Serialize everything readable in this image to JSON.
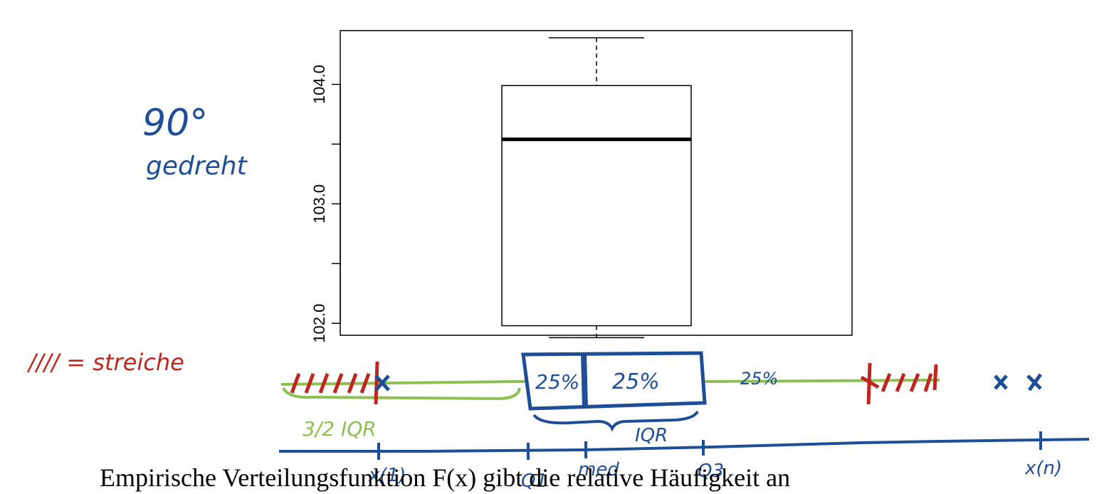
{
  "chart_data": {
    "type": "boxplot",
    "orientation": "vertical",
    "ylim": [
      101.9,
      104.45
    ],
    "yticks": [
      102.0,
      102.5,
      103.0,
      103.5,
      104.0
    ],
    "ytick_labels": [
      "102.0",
      "",
      "103.0",
      "",
      "104.0"
    ],
    "whisker_low": 101.88,
    "q1": 101.98,
    "median": 103.54,
    "q3": 103.99,
    "whisker_high": 104.39,
    "grid": false
  },
  "annotations": {
    "rotation_note_line1": "90°",
    "rotation_note_line2": "gedreht",
    "strike_legend": "//// = streiche",
    "box_left_pct": "25%",
    "box_right_pct": "25%",
    "right_segment_pct": "25%",
    "fence_label": "3/2 IQR",
    "iqr_label": "IQR",
    "axis_label_min": "x(1)",
    "axis_label_q1": "Q1",
    "axis_label_med": "med",
    "axis_label_q3": "Q3",
    "axis_label_max": "x(n)",
    "outlier_marks": [
      "x",
      "x"
    ]
  },
  "colors": {
    "blue": "#1f4e99",
    "green": "#8cc152",
    "red": "#c0261f",
    "black": "#000000"
  },
  "footer_text": "Empirische Verteilungsfunktion F(x) gibt die relative Häufigkeit an"
}
